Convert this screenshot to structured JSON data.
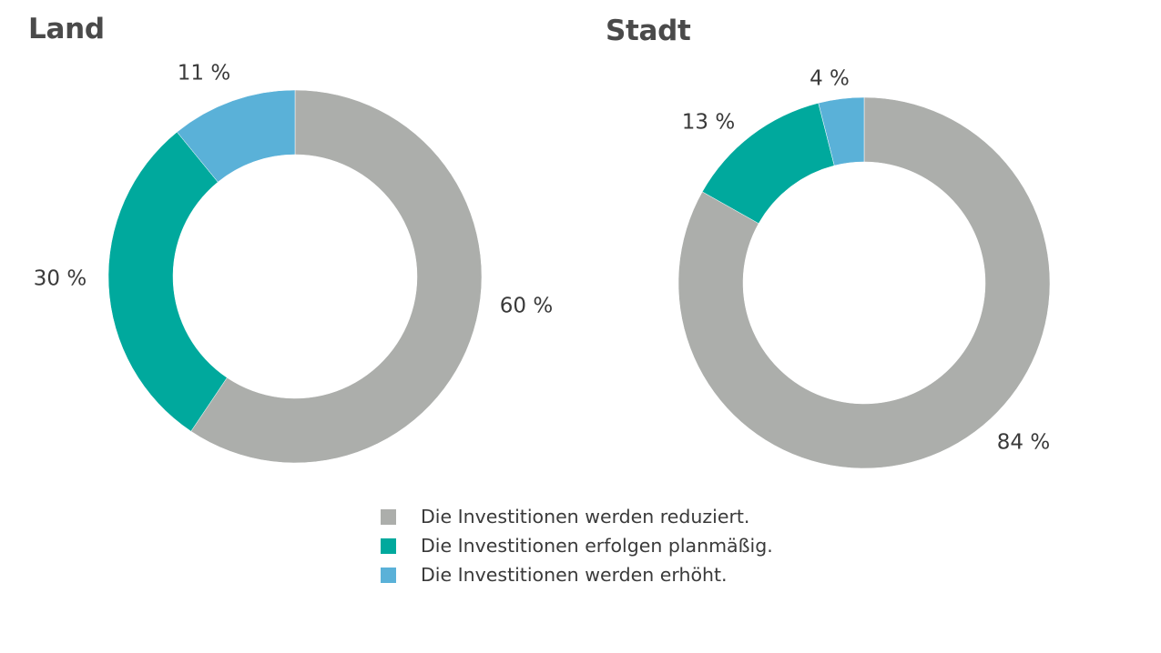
{
  "colors": {
    "reduced": "#acaeab",
    "planned": "#00a99d",
    "increased": "#5ab1d8"
  },
  "chart_data": [
    {
      "type": "donut",
      "title": "Land",
      "series": [
        {
          "name": "Die Investitionen werden reduziert.",
          "value": 60,
          "label": "60 %",
          "color_key": "reduced"
        },
        {
          "name": "Die Investitionen erfolgen planmäßig.",
          "value": 30,
          "label": "30 %",
          "color_key": "planned"
        },
        {
          "name": "Die Investitionen werden erhöht.",
          "value": 11,
          "label": "11 %",
          "color_key": "increased"
        }
      ]
    },
    {
      "type": "donut",
      "title": "Stadt",
      "series": [
        {
          "name": "Die Investitionen werden reduziert.",
          "value": 84,
          "label": "84 %",
          "color_key": "reduced"
        },
        {
          "name": "Die Investitionen erfolgen planmäßig.",
          "value": 13,
          "label": "13 %",
          "color_key": "planned"
        },
        {
          "name": "Die Investitionen werden erhöht.",
          "value": 4,
          "label": "4 %",
          "color_key": "increased"
        }
      ]
    }
  ],
  "legend": [
    {
      "label": "Die Investitionen werden reduziert.",
      "color_key": "reduced"
    },
    {
      "label": "Die Investitionen erfolgen planmäßig.",
      "color_key": "planned"
    },
    {
      "label": "Die Investitionen werden erhöht.",
      "color_key": "increased"
    }
  ]
}
